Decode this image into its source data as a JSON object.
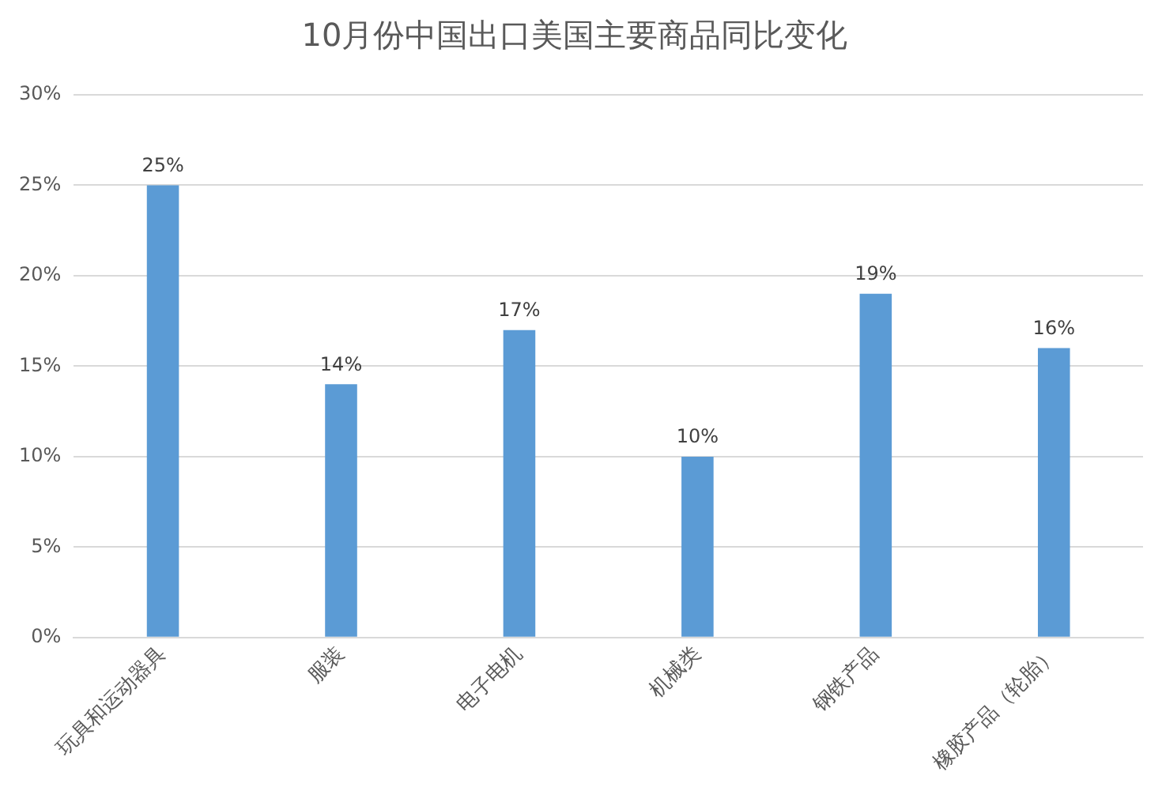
{
  "chart_data": {
    "type": "bar",
    "title": "10月份中国出口美国主要商品同比变化",
    "categories": [
      "玩具和运动器具",
      "服装",
      "电子电机",
      "机械类",
      "钢铁产品",
      "橡胶产品（轮胎）"
    ],
    "values": [
      25,
      14,
      17,
      10,
      19,
      16
    ],
    "value_labels": [
      "25%",
      "14%",
      "17%",
      "10%",
      "19%",
      "16%"
    ],
    "color": "#5b9bd5",
    "ylim": [
      0,
      30
    ],
    "yticks": [
      {
        "value": 0,
        "label": "0%"
      },
      {
        "value": 5,
        "label": "5%"
      },
      {
        "value": 10,
        "label": "10%"
      },
      {
        "value": 15,
        "label": "15%"
      },
      {
        "value": 20,
        "label": "20%"
      },
      {
        "value": 25,
        "label": "25%"
      },
      {
        "value": 30,
        "label": "30%"
      }
    ],
    "grid": "y",
    "legend": false
  }
}
